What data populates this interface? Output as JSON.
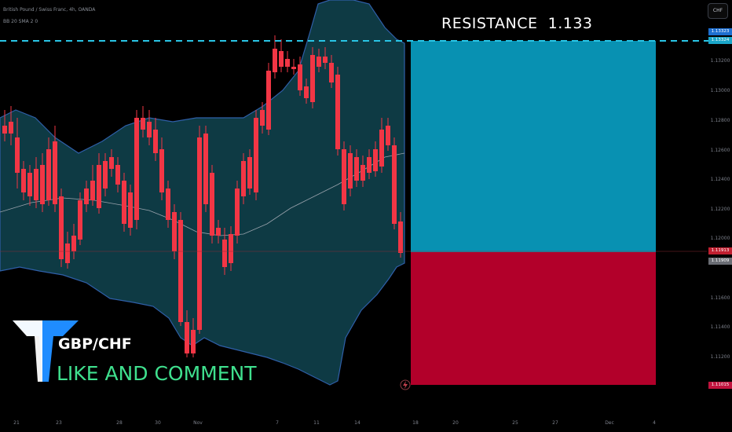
{
  "header": {
    "symbol_line": "British Pound / Swiss Franc, 4h, OANDA",
    "indicator_line": "BB 20 SMA 2 0"
  },
  "currency_button": "CHF",
  "annotation": {
    "resistance_text": "RESISTANCE  1.133"
  },
  "branding": {
    "pair": "GBP/CHF",
    "call_to_action": "LIKE AND COMMENT"
  },
  "price_axis": {
    "labels": [
      "1.13200",
      "1.13000",
      "1.12800",
      "1.12600",
      "1.12400",
      "1.12200",
      "1.12000",
      "1.11600",
      "1.11400",
      "1.11200"
    ],
    "tags": {
      "resistance_a": "1.13323",
      "resistance_b": "1.13324",
      "current_price": "1.11913",
      "marker": "1.11909",
      "stop": "1.11015"
    }
  },
  "time_axis": {
    "labels": [
      "21",
      "23",
      "28",
      "30",
      "Nov",
      "7",
      "11",
      "14",
      "18",
      "20",
      "25",
      "27",
      "Dec",
      "4"
    ]
  },
  "colors": {
    "background": "#000000",
    "band_fill": "#0e3a44",
    "band_line": "#2f5fa8",
    "bull": "#26e8a0",
    "bear": "#f23645",
    "target_zone": "#0891b2",
    "stop_zone": "#b2002a",
    "resistance_line": "#29c5e6"
  }
}
